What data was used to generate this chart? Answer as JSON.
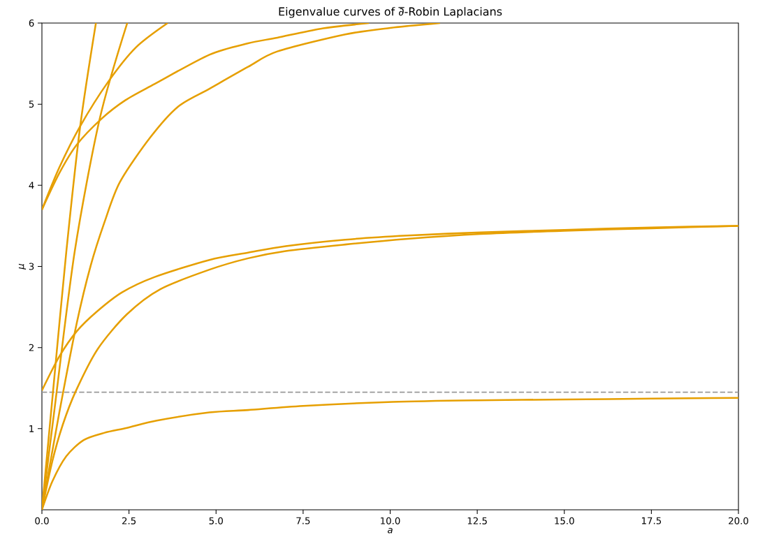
{
  "chart_data": {
    "type": "line",
    "title": "Eigenvalue curves of ∂̅-Robin Laplacians",
    "xlabel": "a",
    "ylabel": "μ",
    "xlim": [
      0,
      20
    ],
    "ylim": [
      0,
      6
    ],
    "xticks": [
      {
        "value": 0,
        "label": "0.0"
      },
      {
        "value": 2.5,
        "label": "2.5"
      },
      {
        "value": 5,
        "label": "5.0"
      },
      {
        "value": 7.5,
        "label": "7.5"
      },
      {
        "value": 10,
        "label": "10.0"
      },
      {
        "value": 12.5,
        "label": "12.5"
      },
      {
        "value": 15,
        "label": "15.0"
      },
      {
        "value": 17.5,
        "label": "17.5"
      },
      {
        "value": 20,
        "label": "20.0"
      }
    ],
    "yticks": [
      1,
      2,
      3,
      4,
      5,
      6
    ],
    "ref_lines": [
      {
        "axis": "y",
        "value": 1.45,
        "color": "#999999",
        "line_style": "dashed"
      }
    ],
    "series": [
      {
        "color": "#e69f00",
        "x": [
          0,
          0.3,
          0.7,
          1.2,
          1.8,
          2.44,
          3.3,
          4.81,
          5.92,
          7.5,
          10.07,
          12.5,
          15.05,
          17.5,
          20
        ],
        "values": [
          0,
          0.35,
          0.66,
          0.86,
          0.95,
          1.01,
          1.1,
          1.2,
          1.23,
          1.28,
          1.33,
          1.35,
          1.36,
          1.37,
          1.38
        ]
      },
      {
        "color": "#e69f00",
        "x": [
          0,
          0.5,
          1.0,
          1.57,
          2.3,
          3.24,
          4.81,
          5.92,
          7.0,
          8.71,
          10.5,
          12.6,
          15.0,
          17.5,
          20
        ],
        "values": [
          1.47,
          1.89,
          2.2,
          2.44,
          2.68,
          2.87,
          3.08,
          3.17,
          3.25,
          3.33,
          3.38,
          3.42,
          3.45,
          3.48,
          3.5
        ]
      },
      {
        "color": "#e69f00",
        "x": [
          0,
          0.3,
          0.6,
          0.97,
          1.6,
          2.44,
          3.4,
          4.81,
          5.92,
          7.0,
          8.71,
          10.5,
          12.6,
          15.0,
          17.5,
          20
        ],
        "values": [
          0,
          0.6,
          1.05,
          1.46,
          1.98,
          2.41,
          2.72,
          2.96,
          3.1,
          3.19,
          3.27,
          3.34,
          3.4,
          3.44,
          3.47,
          3.5
        ]
      },
      {
        "color": "#e69f00",
        "x": [
          0,
          0.5,
          1.0,
          1.71,
          2.4,
          3.24,
          4.81,
          5.92,
          6.76,
          8.0,
          9.39
        ],
        "values": [
          3.7,
          4.15,
          4.5,
          4.82,
          5.05,
          5.25,
          5.61,
          5.75,
          5.82,
          5.93,
          6.0
        ]
      },
      {
        "color": "#e69f00",
        "x": [
          0,
          0.5,
          1.1,
          1.91,
          2.7,
          3.61
        ],
        "values": [
          3.7,
          4.22,
          4.73,
          5.28,
          5.7,
          6.0
        ]
      },
      {
        "color": "#e69f00",
        "x": [
          0,
          0.5,
          1.0,
          1.4,
          1.8,
          2.24,
          3.11,
          3.91,
          4.81,
          5.92,
          6.76,
          8.71,
          10.0,
          11.43
        ],
        "values": [
          0,
          1.2,
          2.3,
          3.01,
          3.55,
          4.04,
          4.59,
          4.97,
          5.19,
          5.46,
          5.65,
          5.86,
          5.94,
          6.0
        ]
      },
      {
        "color": "#e69f00",
        "x": [
          0,
          0.35,
          0.7,
          1.1,
          1.55
        ],
        "values": [
          0,
          1.6,
          3.18,
          4.73,
          6.0
        ]
      },
      {
        "color": "#e69f00",
        "x": [
          0,
          0.35,
          0.94,
          1.66,
          2.45
        ],
        "values": [
          0,
          1.2,
          3.18,
          4.82,
          6.0
        ]
      }
    ]
  }
}
